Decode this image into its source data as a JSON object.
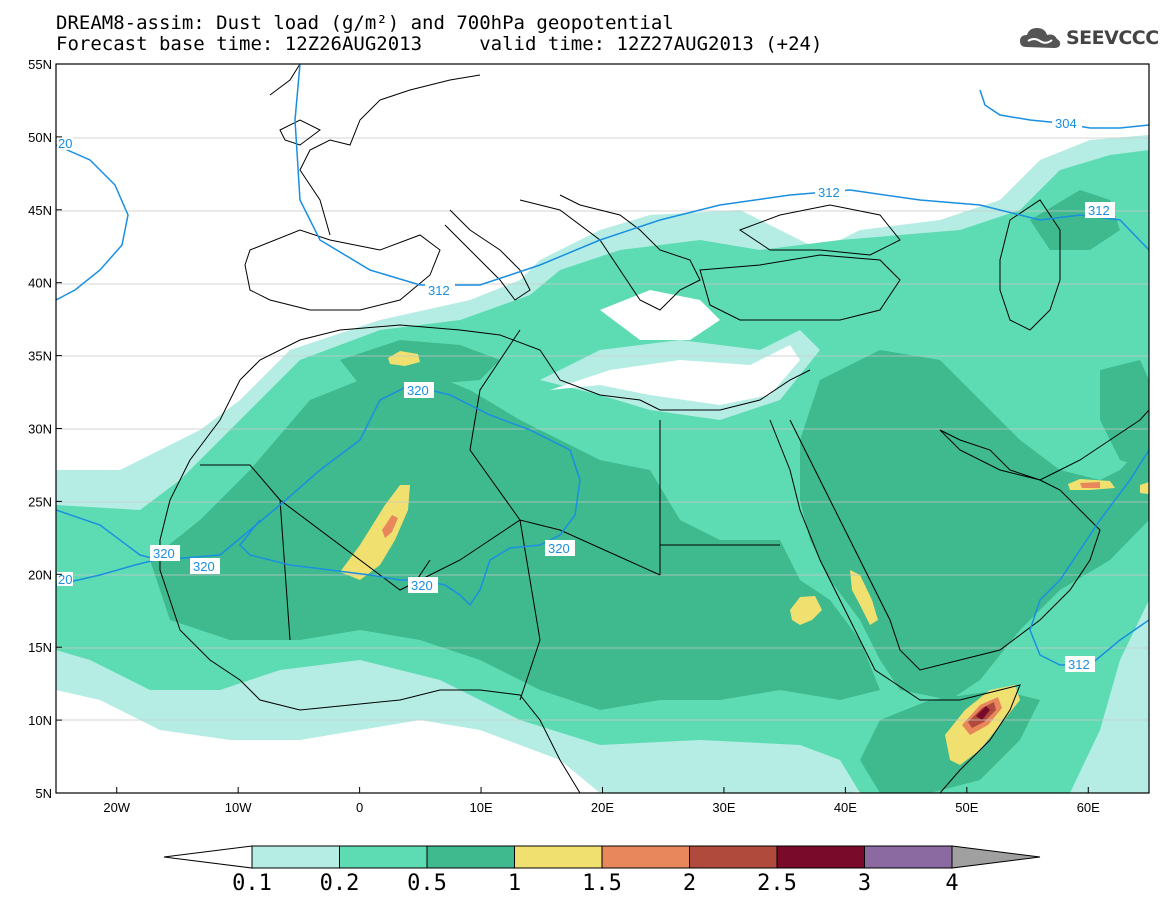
{
  "title": {
    "line1": "DREAM8-assim: Dust load (g/m²) and 700hPa geopotential",
    "line2": "Forecast base time: 12Z26AUG2013     valid time: 12Z27AUG2013 (+24)"
  },
  "logo": {
    "text": "SEEVCCC",
    "icon": "cloud-icon"
  },
  "map": {
    "lon_range": [
      -25,
      65
    ],
    "lat_range": [
      5,
      55
    ],
    "lat_ticks": [
      "55N",
      "50N",
      "45N",
      "40N",
      "35N",
      "30N",
      "25N",
      "20N",
      "15N",
      "10N",
      "5N"
    ],
    "lon_ticks": [
      "20W",
      "10W",
      "0",
      "10E",
      "20E",
      "30E",
      "40E",
      "50E",
      "60E"
    ],
    "contour_labels": [
      "320",
      "320",
      "320",
      "320",
      "320",
      "320",
      "320",
      "312",
      "312",
      "312",
      "312",
      "304"
    ],
    "edge_labels": [
      "20",
      "20"
    ]
  },
  "colorbar": {
    "labels": [
      "0.1",
      "0.2",
      "0.5",
      "1",
      "1.5",
      "2",
      "2.5",
      "3",
      "4"
    ],
    "colors": [
      "#b5ede4",
      "#5ddcb3",
      "#3fb98e",
      "#f0e070",
      "#e8875c",
      "#b04a3c",
      "#7a0a2a",
      "#8a6aa0",
      "#a0a0a0"
    ]
  },
  "colors": {
    "contour": "#1a8fe0",
    "level1": "#b5ede4",
    "level2": "#5ddcb3",
    "level3": "#3fb98e",
    "level4": "#f0e070",
    "level5": "#e8875c",
    "level6": "#b04a3c",
    "level7": "#7a0a2a"
  }
}
